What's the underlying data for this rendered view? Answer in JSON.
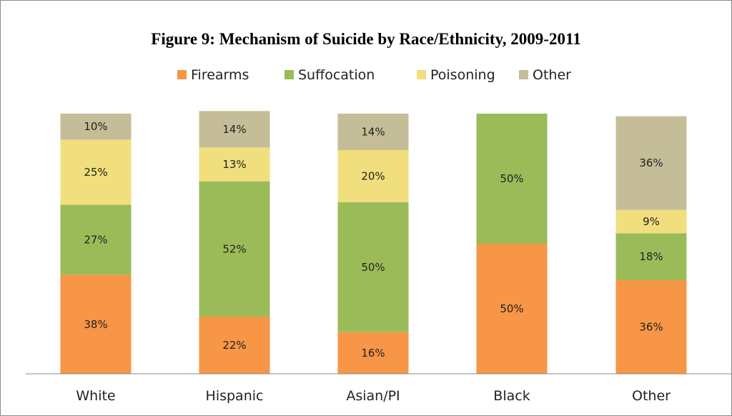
{
  "chart_data": {
    "type": "bar",
    "stacked": true,
    "title": "Figure 9: Mechanism of Suicide by Race/Ethnicity, 2009-2011",
    "categories": [
      "White",
      "Hispanic",
      "Asian/PI",
      "Black",
      "Other"
    ],
    "series": [
      {
        "name": "Firearms",
        "color": "#f79646",
        "values": [
          38,
          22,
          16,
          50,
          36
        ]
      },
      {
        "name": "Suffocation",
        "color": "#9bbb59",
        "values": [
          27,
          52,
          50,
          50,
          18
        ]
      },
      {
        "name": "Poisoning",
        "color": "#f0df7c",
        "values": [
          25,
          13,
          20,
          0,
          9
        ]
      },
      {
        "name": "Other",
        "color": "#c4bd97",
        "values": [
          10,
          14,
          14,
          0,
          36
        ]
      }
    ],
    "value_suffix": "%",
    "ylim": [
      0,
      100
    ],
    "legend_position": "top",
    "grid": false,
    "xlabel": "",
    "ylabel": ""
  }
}
